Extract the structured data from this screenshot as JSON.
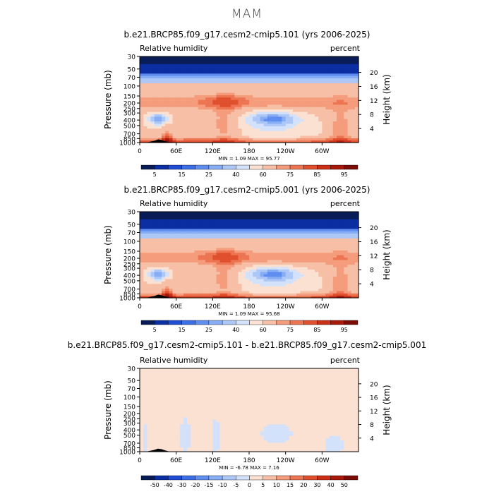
{
  "main_title": "MAM",
  "chart_data": [
    {
      "type": "heatmap",
      "title": "b.e21.BRCP85.f09_g17.cesm2-cmip5.101 (yrs 2006-2025)",
      "variable": "Relative humidity",
      "units": "percent",
      "ylabel": "Pressure (mb)",
      "ylabel_right": "Height (km)",
      "x_ticks": [
        "0",
        "60E",
        "120E",
        "180",
        "120W",
        "60W"
      ],
      "x_tick_values": [
        0,
        60,
        120,
        180,
        240,
        300
      ],
      "xlim": [
        0,
        360
      ],
      "y_ticks": [
        "1000",
        "850",
        "700",
        "500",
        "400",
        "300",
        "250",
        "200",
        "150",
        "100",
        "70",
        "50",
        "30"
      ],
      "y_tick_values": [
        1000,
        850,
        700,
        500,
        400,
        300,
        250,
        200,
        150,
        100,
        70,
        50,
        30
      ],
      "y_scale": "log",
      "ylim": [
        1000,
        30
      ],
      "height_ticks": [
        "4",
        "8",
        "12",
        "16",
        "20"
      ],
      "height_tick_values": [
        4,
        8,
        12,
        16,
        20
      ],
      "stats": "MIN =     1.09   MAX =   95.77",
      "colorbar_labels": [
        "5",
        "15",
        "25",
        "40",
        "60",
        "75",
        "85",
        "95"
      ],
      "levels": [
        5,
        10,
        15,
        20,
        25,
        30,
        40,
        50,
        60,
        70,
        75,
        80,
        85,
        90,
        95
      ],
      "colors": [
        "#081d58",
        "#0b2ea3",
        "#1f4dd6",
        "#3b6fe8",
        "#5f8ef0",
        "#87aef5",
        "#adc8f7",
        "#d3e2fa",
        "#fbe1d2",
        "#f7c0a6",
        "#f49c7c",
        "#ed7552",
        "#e0502f",
        "#cc2f17",
        "#a8180b",
        "#7a0b05"
      ]
    },
    {
      "type": "heatmap",
      "title": "b.e21.BRCP85.f09_g17.cesm2-cmip5.001 (yrs 2006-2025)",
      "variable": "Relative humidity",
      "units": "percent",
      "ylabel": "Pressure (mb)",
      "ylabel_right": "Height (km)",
      "x_ticks": [
        "0",
        "60E",
        "120E",
        "180",
        "120W",
        "60W"
      ],
      "x_tick_values": [
        0,
        60,
        120,
        180,
        240,
        300
      ],
      "xlim": [
        0,
        360
      ],
      "y_ticks": [
        "1000",
        "850",
        "700",
        "500",
        "400",
        "300",
        "250",
        "200",
        "150",
        "100",
        "70",
        "50",
        "30"
      ],
      "y_tick_values": [
        1000,
        850,
        700,
        500,
        400,
        300,
        250,
        200,
        150,
        100,
        70,
        50,
        30
      ],
      "y_scale": "log",
      "ylim": [
        1000,
        30
      ],
      "height_ticks": [
        "4",
        "8",
        "12",
        "16",
        "20"
      ],
      "height_tick_values": [
        4,
        8,
        12,
        16,
        20
      ],
      "stats": "MIN =     1.09   MAX =   95.68",
      "colorbar_labels": [
        "5",
        "15",
        "25",
        "40",
        "60",
        "75",
        "85",
        "95"
      ],
      "levels": [
        5,
        10,
        15,
        20,
        25,
        30,
        40,
        50,
        60,
        70,
        75,
        80,
        85,
        90,
        95
      ],
      "colors": [
        "#081d58",
        "#0b2ea3",
        "#1f4dd6",
        "#3b6fe8",
        "#5f8ef0",
        "#87aef5",
        "#adc8f7",
        "#d3e2fa",
        "#fbe1d2",
        "#f7c0a6",
        "#f49c7c",
        "#ed7552",
        "#e0502f",
        "#cc2f17",
        "#a8180b",
        "#7a0b05"
      ]
    },
    {
      "type": "heatmap",
      "title": "b.e21.BRCP85.f09_g17.cesm2-cmip5.101 - b.e21.BRCP85.f09_g17.cesm2-cmip5.001",
      "variable": "Relative humidity",
      "units": "percent",
      "ylabel": "Pressure (mb)",
      "ylabel_right": "Height (km)",
      "x_ticks": [
        "0",
        "60E",
        "120E",
        "180",
        "120W",
        "60W"
      ],
      "x_tick_values": [
        0,
        60,
        120,
        180,
        240,
        300
      ],
      "xlim": [
        0,
        360
      ],
      "y_ticks": [
        "1000",
        "850",
        "700",
        "500",
        "400",
        "300",
        "250",
        "200",
        "150",
        "100",
        "70",
        "50",
        "30"
      ],
      "y_tick_values": [
        1000,
        850,
        700,
        500,
        400,
        300,
        250,
        200,
        150,
        100,
        70,
        50,
        30
      ],
      "y_scale": "log",
      "ylim": [
        1000,
        30
      ],
      "height_ticks": [
        "4",
        "8",
        "12",
        "16",
        "20"
      ],
      "height_tick_values": [
        4,
        8,
        12,
        16,
        20
      ],
      "stats": "MIN =    -6.78   MAX =    7.16",
      "colorbar_labels": [
        "-50",
        "-40",
        "-30",
        "-20",
        "-15",
        "-10",
        "-5",
        "0",
        "5",
        "10",
        "15",
        "20",
        "30",
        "40",
        "50"
      ],
      "levels": [
        -50,
        -40,
        -30,
        -20,
        -15,
        -10,
        -5,
        0,
        5,
        10,
        15,
        20,
        30,
        40,
        50
      ],
      "colors": [
        "#081d58",
        "#0b2ea3",
        "#1f4dd6",
        "#3b6fe8",
        "#5f8ef0",
        "#87aef5",
        "#adc8f7",
        "#d3e2fa",
        "#fbe1d2",
        "#f7c0a6",
        "#f49c7c",
        "#ed7552",
        "#e0502f",
        "#cc2f17",
        "#a8180b",
        "#7a0b05"
      ]
    }
  ]
}
